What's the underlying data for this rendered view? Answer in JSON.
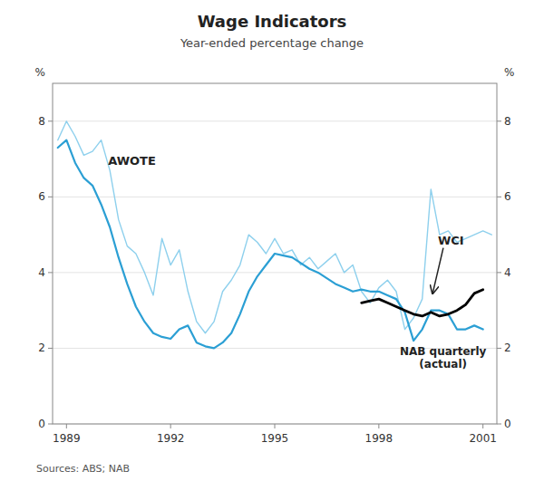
{
  "chart_data": {
    "type": "line",
    "title": "Wage Indicators",
    "subtitle": "Year-ended percentage change",
    "source": "Sources: ABS; NAB",
    "y_label": "%",
    "y2_label": "%",
    "xlim": [
      1988.6,
      2001.4
    ],
    "xticks": [
      1989,
      1992,
      1995,
      1998,
      2001
    ],
    "ylim": [
      0,
      9
    ],
    "yticks": [
      0,
      2,
      4,
      6,
      8
    ],
    "y2lim": [
      0,
      9
    ],
    "y2ticks": [
      0,
      2,
      4,
      6,
      8
    ],
    "grid": true,
    "series": [
      {
        "color": "#8ed0ed",
        "x": [
          1988.75,
          1989.0,
          1989.25,
          1989.5,
          1989.75,
          1990.0,
          1990.25,
          1990.5,
          1990.75,
          1991.0,
          1991.25,
          1991.5,
          1991.75,
          1992.0,
          1992.25,
          1992.5,
          1992.75,
          1993.0,
          1993.25,
          1993.5,
          1993.75,
          1994.0,
          1994.25,
          1994.5,
          1994.75,
          1995.0,
          1995.25,
          1995.5,
          1995.75,
          1996.0,
          1996.25,
          1996.5,
          1996.75,
          1997.0,
          1997.25,
          1997.5,
          1997.75,
          1998.0,
          1998.25,
          1998.5,
          1998.75,
          1999.0,
          1999.25,
          1999.5,
          1999.75,
          2000.0,
          2000.25,
          2000.5,
          2000.75,
          2001.0,
          2001.25
        ],
        "values": [
          7.5,
          8.0,
          7.6,
          7.1,
          7.2,
          7.5,
          6.7,
          5.4,
          4.7,
          4.5,
          4.0,
          3.4,
          4.9,
          4.2,
          4.6,
          3.5,
          2.7,
          2.4,
          2.7,
          3.5,
          3.8,
          4.2,
          5.0,
          4.8,
          4.5,
          4.9,
          4.5,
          4.6,
          4.2,
          4.4,
          4.1,
          4.3,
          4.5,
          4.0,
          4.2,
          3.5,
          3.2,
          3.6,
          3.8,
          3.5,
          2.5,
          2.8,
          3.3,
          6.2,
          5.0,
          5.1,
          4.8,
          4.9,
          5.0,
          5.1,
          5.0
        ]
      },
      {
        "color": "#2b9fd4",
        "x": [
          1988.75,
          1989.0,
          1989.25,
          1989.5,
          1989.75,
          1990.0,
          1990.25,
          1990.5,
          1990.75,
          1991.0,
          1991.25,
          1991.5,
          1991.75,
          1992.0,
          1992.25,
          1992.5,
          1992.75,
          1993.0,
          1993.25,
          1993.5,
          1993.75,
          1994.0,
          1994.25,
          1994.5,
          1994.75,
          1995.0,
          1995.25,
          1995.5,
          1995.75,
          1996.0,
          1996.25,
          1996.5,
          1996.75,
          1997.0,
          1997.25,
          1997.5,
          1997.75,
          1998.0,
          1998.25,
          1998.5,
          1998.75,
          1999.0,
          1999.25,
          1999.5,
          1999.75,
          2000.0,
          2000.25,
          2000.5,
          2000.75,
          2001.0
        ],
        "values": [
          7.3,
          7.5,
          6.9,
          6.5,
          6.3,
          5.8,
          5.2,
          4.4,
          3.7,
          3.1,
          2.7,
          2.4,
          2.3,
          2.25,
          2.5,
          2.6,
          2.15,
          2.05,
          2.0,
          2.15,
          2.4,
          2.9,
          3.5,
          3.9,
          4.2,
          4.5,
          4.45,
          4.4,
          4.25,
          4.1,
          4.0,
          3.85,
          3.7,
          3.6,
          3.5,
          3.55,
          3.5,
          3.5,
          3.4,
          3.3,
          2.95,
          2.2,
          2.5,
          3.0,
          3.0,
          2.9,
          2.5,
          2.5,
          2.6,
          2.5
        ]
      },
      {
        "color": "#000000",
        "x": [
          1997.5,
          1997.75,
          1998.0,
          1998.25,
          1998.5,
          1998.75,
          1999.0,
          1999.25,
          1999.5,
          1999.75,
          2000.0,
          2000.25,
          2000.5,
          2000.75,
          2001.0
        ],
        "values": [
          3.2,
          3.25,
          3.3,
          3.2,
          3.1,
          3.0,
          2.9,
          2.85,
          2.95,
          2.85,
          2.9,
          3.0,
          3.15,
          3.45,
          3.55
        ]
      }
    ],
    "annotations": [
      {
        "text": "AWOTE",
        "x": 1990.2,
        "y": 6.85
      },
      {
        "text": "WCI",
        "x": 1999.7,
        "y": 4.75,
        "arrow_x": 1999.55,
        "arrow_y": 3.45
      },
      {
        "text": "NAB quarterly\n(actual)",
        "x": 1999.85,
        "y": 1.48
      }
    ]
  }
}
